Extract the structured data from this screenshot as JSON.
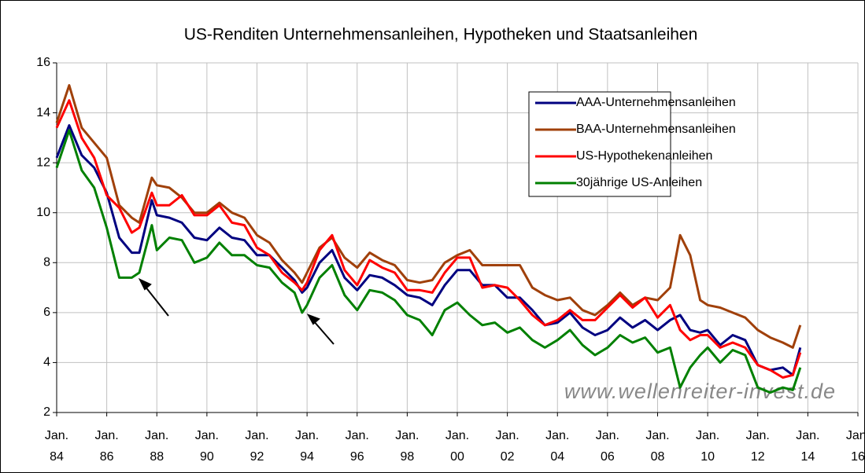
{
  "chart_data": {
    "type": "line",
    "title": "US-Renditen Unternehmensanleihen, Hypotheken und Staatsanleihen",
    "annotation": "www.wellenreiter-invest.de",
    "legend": "upper right",
    "grid": true,
    "x": [
      1984,
      1984.5,
      1985,
      1985.5,
      1986,
      1986.5,
      1987,
      1987.3,
      1987.8,
      1988,
      1988.5,
      1989,
      1989.5,
      1990,
      1990.5,
      1991,
      1991.5,
      1992,
      1992.5,
      1993,
      1993.5,
      1993.8,
      1994,
      1994.5,
      1995,
      1995.5,
      1996,
      1996.5,
      1997,
      1997.5,
      1998,
      1998.5,
      1999,
      1999.5,
      2000,
      2000.5,
      2001,
      2001.5,
      2002,
      2002.5,
      2003,
      2003.5,
      2004,
      2004.5,
      2005,
      2005.5,
      2006,
      2006.5,
      2007,
      2007.5,
      2008,
      2008.5,
      2008.9,
      2009.3,
      2009.7,
      2010,
      2010.5,
      2011,
      2011.5,
      2012,
      2012.5,
      2013,
      2013.4,
      2013.7
    ],
    "series": [
      {
        "name": "AAA-Unternehmensanleihen",
        "color": "#000080",
        "values": [
          12.2,
          13.5,
          12.3,
          11.8,
          10.8,
          9.0,
          8.4,
          8.4,
          10.5,
          9.9,
          9.8,
          9.6,
          9.0,
          8.9,
          9.4,
          9.0,
          8.9,
          8.3,
          8.3,
          7.8,
          7.3,
          6.8,
          7.0,
          8.0,
          8.5,
          7.4,
          6.9,
          7.5,
          7.4,
          7.1,
          6.7,
          6.6,
          6.3,
          7.1,
          7.7,
          7.7,
          7.1,
          7.1,
          6.6,
          6.6,
          6.1,
          5.5,
          5.6,
          6.0,
          5.4,
          5.1,
          5.3,
          5.8,
          5.4,
          5.7,
          5.3,
          5.7,
          5.9,
          5.3,
          5.2,
          5.3,
          4.7,
          5.1,
          4.9,
          3.9,
          3.7,
          3.8,
          3.5,
          4.6
        ]
      },
      {
        "name": "BAA-Unternehmensanleihen",
        "color": "#a0400a",
        "values": [
          13.6,
          15.1,
          13.4,
          12.8,
          12.2,
          10.3,
          9.8,
          9.6,
          11.4,
          11.1,
          11.0,
          10.6,
          10.0,
          10.0,
          10.4,
          10.0,
          9.8,
          9.1,
          8.8,
          8.1,
          7.6,
          7.2,
          7.6,
          8.6,
          9.0,
          8.2,
          7.8,
          8.4,
          8.1,
          7.9,
          7.3,
          7.2,
          7.3,
          8.0,
          8.3,
          8.5,
          7.9,
          7.9,
          7.9,
          7.9,
          7.0,
          6.7,
          6.5,
          6.6,
          6.1,
          5.9,
          6.3,
          6.8,
          6.3,
          6.6,
          6.5,
          7.0,
          9.1,
          8.3,
          6.5,
          6.3,
          6.2,
          6.0,
          5.8,
          5.3,
          5.0,
          4.8,
          4.6,
          5.5
        ]
      },
      {
        "name": "US-Hypothekenanleihen",
        "color": "#ff0000",
        "values": [
          13.4,
          14.5,
          13.0,
          12.2,
          10.7,
          10.2,
          9.2,
          9.4,
          10.8,
          10.3,
          10.3,
          10.7,
          9.9,
          9.9,
          10.3,
          9.6,
          9.5,
          8.6,
          8.3,
          7.6,
          7.2,
          6.9,
          7.2,
          8.5,
          9.1,
          7.7,
          7.1,
          8.1,
          7.8,
          7.6,
          6.9,
          6.9,
          6.8,
          7.6,
          8.2,
          8.2,
          7.0,
          7.1,
          7.0,
          6.5,
          5.9,
          5.5,
          5.7,
          6.1,
          5.7,
          5.7,
          6.2,
          6.7,
          6.2,
          6.6,
          5.8,
          6.3,
          5.3,
          4.9,
          5.1,
          5.1,
          4.6,
          4.8,
          4.6,
          3.9,
          3.7,
          3.4,
          3.5,
          4.4
        ]
      },
      {
        "name": "30jährige US-Anleihen",
        "color": "#008000",
        "values": [
          11.8,
          13.3,
          11.7,
          11.0,
          9.4,
          7.4,
          7.4,
          7.6,
          9.5,
          8.5,
          9.0,
          8.9,
          8.0,
          8.2,
          8.8,
          8.3,
          8.3,
          7.9,
          7.8,
          7.2,
          6.8,
          6.0,
          6.3,
          7.4,
          7.9,
          6.7,
          6.1,
          6.9,
          6.8,
          6.5,
          5.9,
          5.7,
          5.1,
          6.1,
          6.4,
          5.9,
          5.5,
          5.6,
          5.2,
          5.4,
          4.9,
          4.6,
          4.9,
          5.3,
          4.7,
          4.3,
          4.6,
          5.1,
          4.8,
          5.0,
          4.4,
          4.6,
          3.0,
          3.8,
          4.3,
          4.6,
          4.0,
          4.5,
          4.3,
          3.0,
          2.8,
          3.0,
          2.9,
          3.8
        ]
      }
    ],
    "xlim": [
      1984,
      2016
    ],
    "xticks": [
      {
        "value": 1984,
        "label": "Jan. 84"
      },
      {
        "value": 1986,
        "label": "Jan. 86"
      },
      {
        "value": 1988,
        "label": "Jan. 88"
      },
      {
        "value": 1990,
        "label": "Jan. 90"
      },
      {
        "value": 1992,
        "label": "Jan. 92"
      },
      {
        "value": 1994,
        "label": "Jan. 94"
      },
      {
        "value": 1996,
        "label": "Jan. 96"
      },
      {
        "value": 1998,
        "label": "Jan. 98"
      },
      {
        "value": 2000,
        "label": "Jan. 00"
      },
      {
        "value": 2002,
        "label": "Jan. 02"
      },
      {
        "value": 2004,
        "label": "Jan. 04"
      },
      {
        "value": 2006,
        "label": "Jan. 06"
      },
      {
        "value": 2008,
        "label": "Jan. 08"
      },
      {
        "value": 2010,
        "label": "Jan. 10"
      },
      {
        "value": 2012,
        "label": "Jan. 12"
      },
      {
        "value": 2014,
        "label": "Jan. 14"
      },
      {
        "value": 2016,
        "label": "Jan. 16"
      }
    ],
    "ylim": [
      2,
      16
    ],
    "yticks": [
      2,
      4,
      6,
      8,
      10,
      12,
      14,
      16
    ]
  }
}
